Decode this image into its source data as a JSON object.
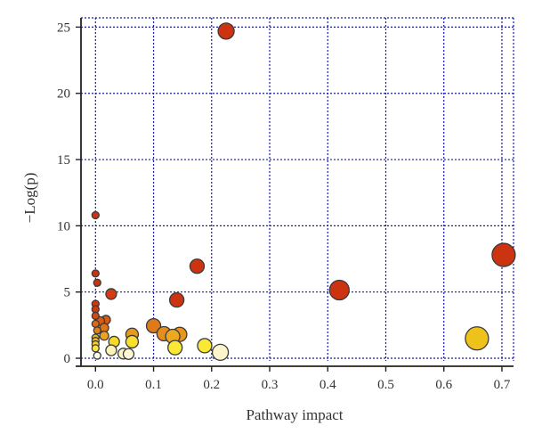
{
  "chart_data": {
    "type": "scatter",
    "xlabel": "Pathway impact",
    "ylabel": "−Log(p)",
    "xlim": [
      -0.025,
      0.72
    ],
    "ylim": [
      -0.2,
      25.7
    ],
    "xticks": [
      0.0,
      0.1,
      0.2,
      0.3,
      0.4,
      0.5,
      0.6,
      0.7
    ],
    "xtick_labels": [
      "0.0",
      "0.1",
      "0.2",
      "0.3",
      "0.4",
      "0.5",
      "0.6",
      "0.7"
    ],
    "yticks": [
      0,
      5,
      10,
      15,
      20,
      25
    ],
    "ytick_labels": [
      "0",
      "5",
      "10",
      "15",
      "20",
      "25"
    ],
    "grid": true,
    "grid_color": "#1a1aa6",
    "point_stroke": "#3a3a3a",
    "points": [
      {
        "x": 0.225,
        "y": 24.7,
        "r": 9,
        "color": "#cc3311"
      },
      {
        "x": 0.0,
        "y": 10.8,
        "r": 4,
        "color": "#cc3311"
      },
      {
        "x": 0.703,
        "y": 7.8,
        "r": 13,
        "color": "#cc3311"
      },
      {
        "x": 0.175,
        "y": 6.95,
        "r": 8,
        "color": "#cc3311"
      },
      {
        "x": 0.0,
        "y": 6.4,
        "r": 4,
        "color": "#cc3311"
      },
      {
        "x": 0.003,
        "y": 5.7,
        "r": 4,
        "color": "#cc3311"
      },
      {
        "x": 0.42,
        "y": 5.15,
        "r": 11,
        "color": "#cc3311"
      },
      {
        "x": 0.027,
        "y": 4.85,
        "r": 6,
        "color": "#d23c12"
      },
      {
        "x": 0.14,
        "y": 4.4,
        "r": 8,
        "color": "#cc3311"
      },
      {
        "x": 0.0,
        "y": 4.1,
        "r": 4,
        "color": "#d0380f"
      },
      {
        "x": 0.0,
        "y": 3.7,
        "r": 4,
        "color": "#d0380f"
      },
      {
        "x": 0.0,
        "y": 3.2,
        "r": 4,
        "color": "#d54a12"
      },
      {
        "x": 0.018,
        "y": 2.9,
        "r": 5,
        "color": "#d85a14"
      },
      {
        "x": 0.008,
        "y": 2.8,
        "r": 5,
        "color": "#d85a14"
      },
      {
        "x": 0.0,
        "y": 2.6,
        "r": 4,
        "color": "#db6a16"
      },
      {
        "x": 0.015,
        "y": 2.3,
        "r": 5,
        "color": "#de7418"
      },
      {
        "x": 0.003,
        "y": 2.1,
        "r": 4,
        "color": "#e0801a"
      },
      {
        "x": 0.1,
        "y": 2.45,
        "r": 8,
        "color": "#df7a18"
      },
      {
        "x": 0.118,
        "y": 1.85,
        "r": 8,
        "color": "#e58e1d"
      },
      {
        "x": 0.145,
        "y": 1.8,
        "r": 8,
        "color": "#e8961e"
      },
      {
        "x": 0.133,
        "y": 1.65,
        "r": 8,
        "color": "#eba820"
      },
      {
        "x": 0.063,
        "y": 1.8,
        "r": 7,
        "color": "#e89a1f"
      },
      {
        "x": 0.015,
        "y": 1.7,
        "r": 5,
        "color": "#eba420"
      },
      {
        "x": 0.0,
        "y": 1.55,
        "r": 4,
        "color": "#eeb722"
      },
      {
        "x": 0.0,
        "y": 1.3,
        "r": 4,
        "color": "#f2c324"
      },
      {
        "x": 0.0,
        "y": 1.05,
        "r": 4,
        "color": "#f5cd26"
      },
      {
        "x": 0.032,
        "y": 1.25,
        "r": 6,
        "color": "#f7d928"
      },
      {
        "x": 0.063,
        "y": 1.25,
        "r": 7,
        "color": "#f9e02a"
      },
      {
        "x": 0.657,
        "y": 1.5,
        "r": 13,
        "color": "#efc21b"
      },
      {
        "x": 0.188,
        "y": 0.95,
        "r": 8,
        "color": "#fae834"
      },
      {
        "x": 0.137,
        "y": 0.8,
        "r": 8,
        "color": "#fae834"
      },
      {
        "x": 0.0,
        "y": 0.75,
        "r": 4,
        "color": "#fbe444"
      },
      {
        "x": 0.027,
        "y": 0.6,
        "r": 6,
        "color": "#fdf3b8"
      },
      {
        "x": 0.215,
        "y": 0.45,
        "r": 9,
        "color": "#fdf6cc"
      },
      {
        "x": 0.048,
        "y": 0.35,
        "r": 6,
        "color": "#fdf6cc"
      },
      {
        "x": 0.057,
        "y": 0.32,
        "r": 6,
        "color": "#fef8d6"
      },
      {
        "x": 0.003,
        "y": 0.2,
        "r": 4,
        "color": "#fffbe6"
      }
    ]
  }
}
